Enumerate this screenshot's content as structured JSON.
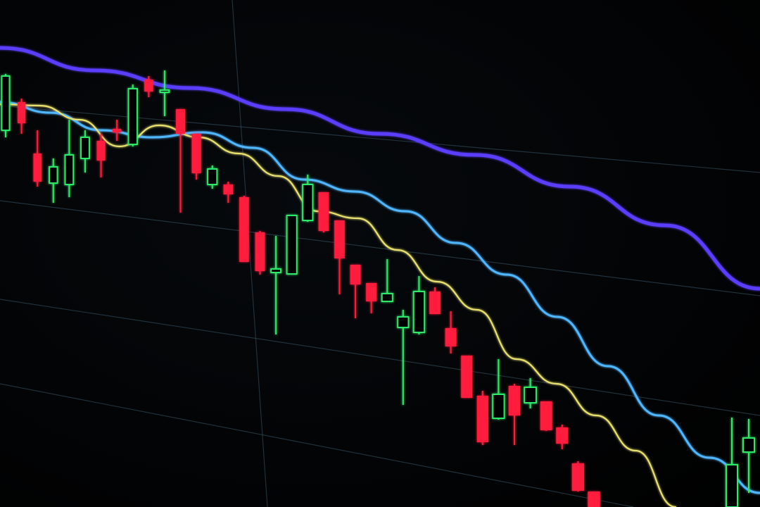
{
  "chart_data": {
    "type": "candlestick",
    "title": "",
    "xlabel": "",
    "ylabel": "",
    "grid": true,
    "colors": {
      "up": "#2ee86a",
      "down": "#ff1f3d",
      "ma_long": "#5a3cff",
      "ma_mid": "#4fb6ff",
      "ma_short": "#e8e070",
      "grid": "#3a5566"
    },
    "candles": [
      {
        "i": 0,
        "o": 535,
        "h": 615,
        "l": 525,
        "c": 612
      },
      {
        "i": 1,
        "o": 575,
        "h": 580,
        "l": 530,
        "c": 545
      },
      {
        "i": 2,
        "o": 502,
        "h": 535,
        "l": 455,
        "c": 462
      },
      {
        "i": 3,
        "o": 460,
        "h": 495,
        "l": 432,
        "c": 483
      },
      {
        "i": 4,
        "o": 458,
        "h": 550,
        "l": 440,
        "c": 500
      },
      {
        "i": 5,
        "o": 495,
        "h": 535,
        "l": 475,
        "c": 525
      },
      {
        "i": 6,
        "o": 520,
        "h": 530,
        "l": 468,
        "c": 492
      },
      {
        "i": 7,
        "o": 537,
        "h": 550,
        "l": 520,
        "c": 532
      },
      {
        "i": 8,
        "o": 515,
        "h": 600,
        "l": 512,
        "c": 594
      },
      {
        "i": 9,
        "o": 607,
        "h": 612,
        "l": 582,
        "c": 590
      },
      {
        "i": 10,
        "o": 590,
        "h": 620,
        "l": 555,
        "c": 592
      },
      {
        "i": 11,
        "o": 565,
        "h": 565,
        "l": 418,
        "c": 530
      },
      {
        "i": 12,
        "o": 530,
        "h": 530,
        "l": 465,
        "c": 474
      },
      {
        "i": 13,
        "o": 458,
        "h": 485,
        "l": 452,
        "c": 480
      },
      {
        "i": 14,
        "o": 458,
        "h": 462,
        "l": 432,
        "c": 444
      },
      {
        "i": 15,
        "o": 440,
        "h": 442,
        "l": 348,
        "c": 348
      },
      {
        "i": 16,
        "o": 390,
        "h": 392,
        "l": 330,
        "c": 335
      },
      {
        "i": 17,
        "o": 333,
        "h": 385,
        "l": 245,
        "c": 338
      },
      {
        "i": 18,
        "o": 331,
        "h": 414,
        "l": 330,
        "c": 414
      },
      {
        "i": 19,
        "o": 407,
        "h": 472,
        "l": 405,
        "c": 458
      },
      {
        "i": 20,
        "o": 447,
        "h": 447,
        "l": 390,
        "c": 392
      },
      {
        "i": 21,
        "o": 407,
        "h": 407,
        "l": 302,
        "c": 353
      },
      {
        "i": 22,
        "o": 344,
        "h": 344,
        "l": 268,
        "c": 316
      },
      {
        "i": 23,
        "o": 318,
        "h": 318,
        "l": 275,
        "c": 292
      },
      {
        "i": 24,
        "o": 292,
        "h": 352,
        "l": 292,
        "c": 303
      },
      {
        "i": 25,
        "o": 255,
        "h": 280,
        "l": 145,
        "c": 270
      },
      {
        "i": 26,
        "o": 248,
        "h": 328,
        "l": 245,
        "c": 306
      },
      {
        "i": 27,
        "o": 306,
        "h": 312,
        "l": 274,
        "c": 274
      },
      {
        "i": 28,
        "o": 254,
        "h": 278,
        "l": 218,
        "c": 228
      },
      {
        "i": 29,
        "o": 215,
        "h": 215,
        "l": 155,
        "c": 155
      },
      {
        "i": 30,
        "o": 158,
        "h": 165,
        "l": 88,
        "c": 92
      },
      {
        "i": 31,
        "o": 126,
        "h": 210,
        "l": 124,
        "c": 160
      },
      {
        "i": 32,
        "o": 172,
        "h": 175,
        "l": 88,
        "c": 130
      },
      {
        "i": 33,
        "o": 148,
        "h": 183,
        "l": 140,
        "c": 170
      },
      {
        "i": 34,
        "o": 150,
        "h": 150,
        "l": 108,
        "c": 109
      },
      {
        "i": 35,
        "o": 113,
        "h": 117,
        "l": 82,
        "c": 90
      },
      {
        "i": 36,
        "o": 62,
        "h": 65,
        "l": 22,
        "c": 23
      },
      {
        "i": 37,
        "o": 22,
        "h": 22,
        "l": 0,
        "c": 0
      }
    ],
    "right_candles": [
      {
        "o": 0,
        "h": 127,
        "l": 0,
        "c": 60
      },
      {
        "o": 78,
        "h": 125,
        "l": 20,
        "c": 98
      }
    ],
    "ma_long": [
      652,
      620,
      595,
      565,
      530,
      500,
      455,
      400,
      310
    ],
    "ma_mid": [
      575,
      560,
      535,
      525,
      532,
      510,
      465,
      448,
      420,
      375,
      330,
      270,
      200,
      130,
      70,
      20
    ],
    "ma_short": [
      572,
      570,
      550,
      512,
      542,
      525,
      502,
      470,
      420,
      410,
      365,
      320,
      280,
      210,
      175,
      130,
      80,
      0
    ]
  }
}
